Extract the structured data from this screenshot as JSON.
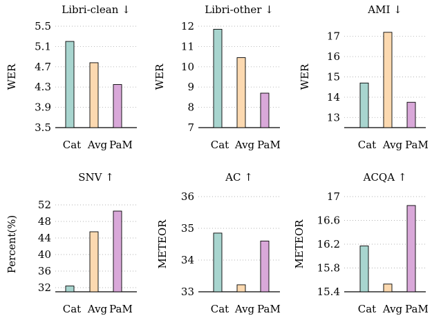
{
  "chart_data": [
    {
      "type": "bar",
      "title": "Libri-clean ↓",
      "ylabel": "WER",
      "categories": [
        "Cat",
        "Avg",
        "PaM"
      ],
      "values": [
        5.2,
        4.78,
        4.35
      ],
      "ylim": [
        3.5,
        5.5
      ],
      "yticks": [
        "3.5",
        "3.9",
        "4.3",
        "4.7",
        "5.1",
        "5.5"
      ],
      "grid": "horizontal-dotted"
    },
    {
      "type": "bar",
      "title": "Libri-other ↓",
      "ylabel": "WER",
      "categories": [
        "Cat",
        "Avg",
        "PaM"
      ],
      "values": [
        11.85,
        10.45,
        8.7
      ],
      "ylim": [
        7,
        12
      ],
      "yticks": [
        "7",
        "8",
        "9",
        "10",
        "11",
        "12"
      ],
      "grid": "horizontal-dotted"
    },
    {
      "type": "bar",
      "title": "AMI ↓",
      "ylabel": "WER",
      "categories": [
        "Cat",
        "Avg",
        "PaM"
      ],
      "values": [
        14.7,
        17.2,
        13.75
      ],
      "ylim": [
        12.5,
        17.5
      ],
      "yticks": [
        "13",
        "14",
        "15",
        "16",
        "17"
      ],
      "grid": "horizontal-dotted"
    },
    {
      "type": "bar",
      "title": "SNV ↑",
      "ylabel": "Percent(%)",
      "categories": [
        "Cat",
        "Avg",
        "PaM"
      ],
      "values": [
        32.4,
        45.5,
        50.5
      ],
      "ylim": [
        31,
        54
      ],
      "yticks": [
        "32",
        "36",
        "40",
        "44",
        "48",
        "52"
      ],
      "grid": "horizontal-dotted"
    },
    {
      "type": "bar",
      "title": "AC ↑",
      "ylabel": "METEOR",
      "categories": [
        "Cat",
        "Avg",
        "PaM"
      ],
      "values": [
        34.85,
        33.22,
        34.6
      ],
      "ylim": [
        33,
        36
      ],
      "yticks": [
        "33",
        "34",
        "35",
        "36"
      ],
      "grid": "horizontal-dotted"
    },
    {
      "type": "bar",
      "title": "ACQA ↑",
      "ylabel": "METEOR",
      "categories": [
        "Cat",
        "Avg",
        "PaM"
      ],
      "values": [
        16.17,
        15.53,
        16.85
      ],
      "ylim": [
        15.4,
        17.0
      ],
      "yticks": [
        "15.4",
        "15.8",
        "16.2",
        "16.6",
        "17"
      ],
      "grid": "horizontal-dotted"
    }
  ],
  "colors": {
    "cat_fill": "#a8d5cf",
    "avg_fill": "#fcd9b0",
    "pam_fill": "#d9a8d9",
    "bar_stroke": "#000000",
    "grid": "#b0b0b0",
    "axis": "#000000"
  }
}
